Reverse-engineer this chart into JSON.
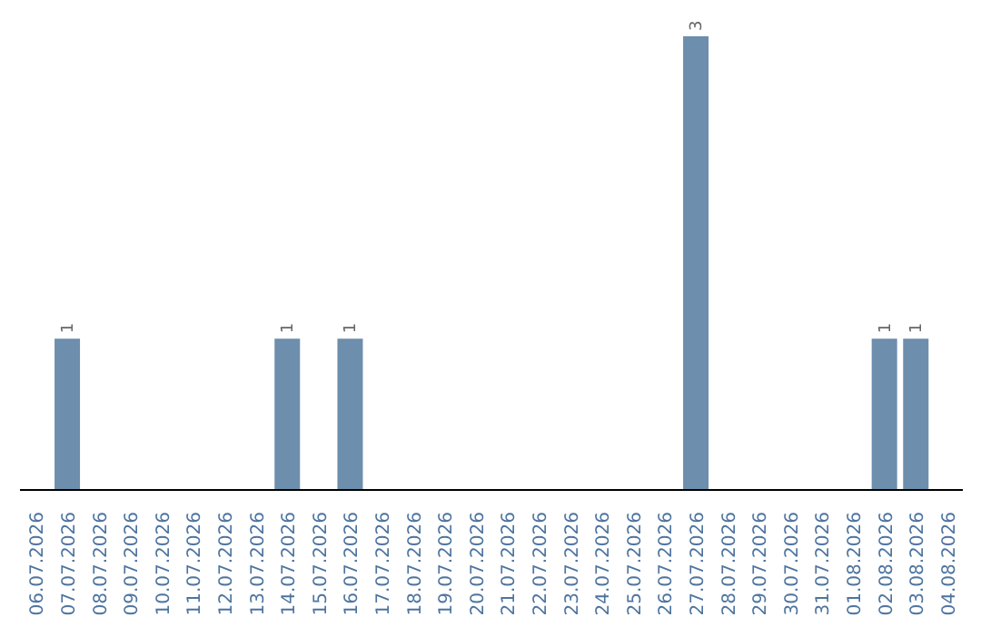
{
  "chart_data": {
    "type": "bar",
    "categories": [
      "06.07.2026",
      "07.07.2026",
      "08.07.2026",
      "09.07.2026",
      "10.07.2026",
      "11.07.2026",
      "12.07.2026",
      "13.07.2026",
      "14.07.2026",
      "15.07.2026",
      "16.07.2026",
      "17.07.2026",
      "18.07.2026",
      "19.07.2026",
      "20.07.2026",
      "21.07.2026",
      "22.07.2026",
      "23.07.2026",
      "24.07.2026",
      "25.07.2026",
      "26.07.2026",
      "27.07.2026",
      "28.07.2026",
      "29.07.2026",
      "30.07.2026",
      "31.07.2026",
      "01.08.2026",
      "02.08.2026",
      "03.08.2026",
      "04.08.2026"
    ],
    "values": [
      0,
      1,
      0,
      0,
      0,
      0,
      0,
      0,
      1,
      0,
      1,
      0,
      0,
      0,
      0,
      0,
      0,
      0,
      0,
      0,
      0,
      3,
      0,
      0,
      0,
      0,
      0,
      1,
      1,
      0
    ],
    "value_labels": [
      null,
      "1",
      null,
      null,
      null,
      null,
      null,
      null,
      "1",
      null,
      "1",
      null,
      null,
      null,
      null,
      null,
      null,
      null,
      null,
      null,
      null,
      "3",
      null,
      null,
      null,
      null,
      null,
      "1",
      "1",
      null
    ],
    "color": "#6d8eac",
    "tick_labels": "x"
  }
}
